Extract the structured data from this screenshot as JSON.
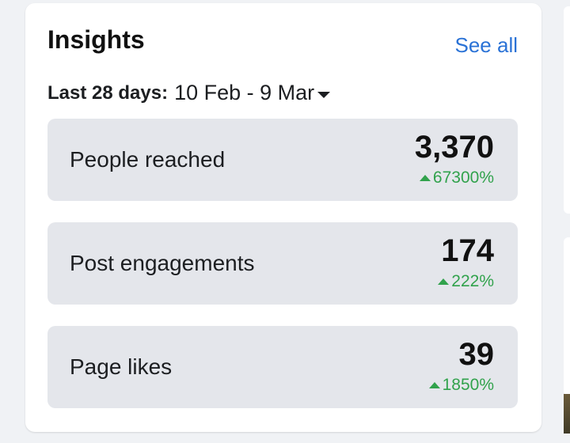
{
  "insights": {
    "title": "Insights",
    "see_all": "See all",
    "date_range": {
      "label": "Last 28 days:",
      "value": "10 Feb - 9 Mar"
    },
    "metrics": [
      {
        "label": "People reached",
        "value": "3,370",
        "change": "67300%"
      },
      {
        "label": "Post engagements",
        "value": "174",
        "change": "222%"
      },
      {
        "label": "Page likes",
        "value": "39",
        "change": "1850%"
      }
    ]
  },
  "colors": {
    "page_bg": "#f0f2f5",
    "card_bg": "#ffffff",
    "metric_bg": "#e4e6eb",
    "link": "#2a72d6",
    "positive": "#31a24c"
  },
  "icons": {
    "date_dropdown": "caret-down-icon",
    "change_indicator": "arrow-up-icon"
  }
}
